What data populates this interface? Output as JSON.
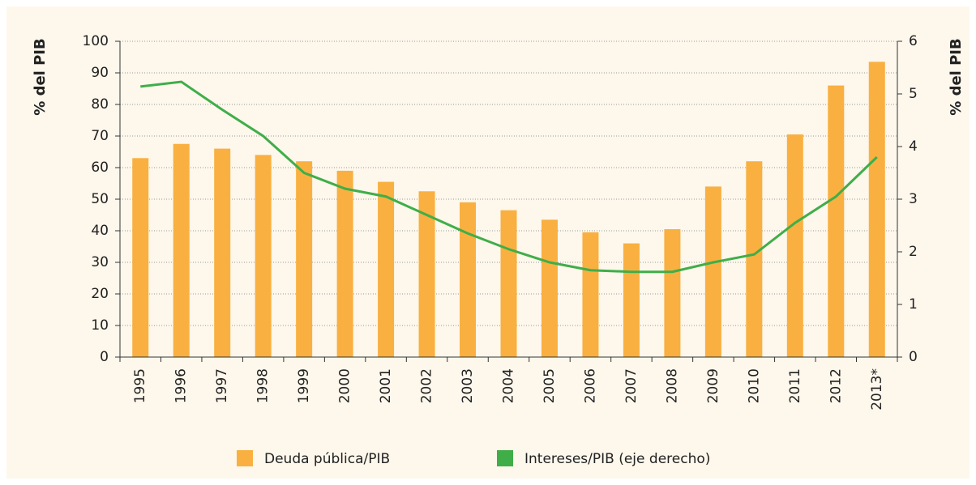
{
  "chart_data": {
    "type": "bar_line",
    "categories": [
      "1995",
      "1996",
      "1997",
      "1998",
      "1999",
      "2000",
      "2001",
      "2002",
      "2003",
      "2004",
      "2005",
      "2006",
      "2007",
      "2008",
      "2009",
      "2010",
      "2011",
      "2012",
      "2013*"
    ],
    "series": [
      {
        "name": "Deuda pública/PIB",
        "color": "#f9b040",
        "type": "bar",
        "values": [
          63,
          67.5,
          66,
          64,
          62,
          59,
          55.5,
          52.5,
          49,
          46.5,
          43.5,
          39.5,
          36,
          40.5,
          54,
          62,
          70.5,
          86,
          93.5
        ]
      },
      {
        "name": "Intereses/PIB (eje derecho)",
        "color": "#3fae49",
        "type": "line",
        "axis": "y2",
        "values": [
          5.14,
          5.23,
          4.7,
          4.2,
          3.5,
          3.2,
          3.05,
          2.7,
          2.35,
          2.05,
          1.8,
          1.65,
          1.62,
          1.62,
          1.8,
          1.95,
          2.55,
          3.05,
          3.8
        ]
      }
    ],
    "ylabel": "% del PIB",
    "y2label": "% del PIB",
    "ylim": [
      0,
      100
    ],
    "yticks": [
      0,
      10,
      20,
      30,
      40,
      50,
      60,
      70,
      80,
      90,
      100
    ],
    "y2lim": [
      0,
      6
    ],
    "y2ticks": [
      0,
      1,
      2,
      3,
      4,
      5,
      6
    ],
    "grid": true,
    "legend": "bottom"
  }
}
